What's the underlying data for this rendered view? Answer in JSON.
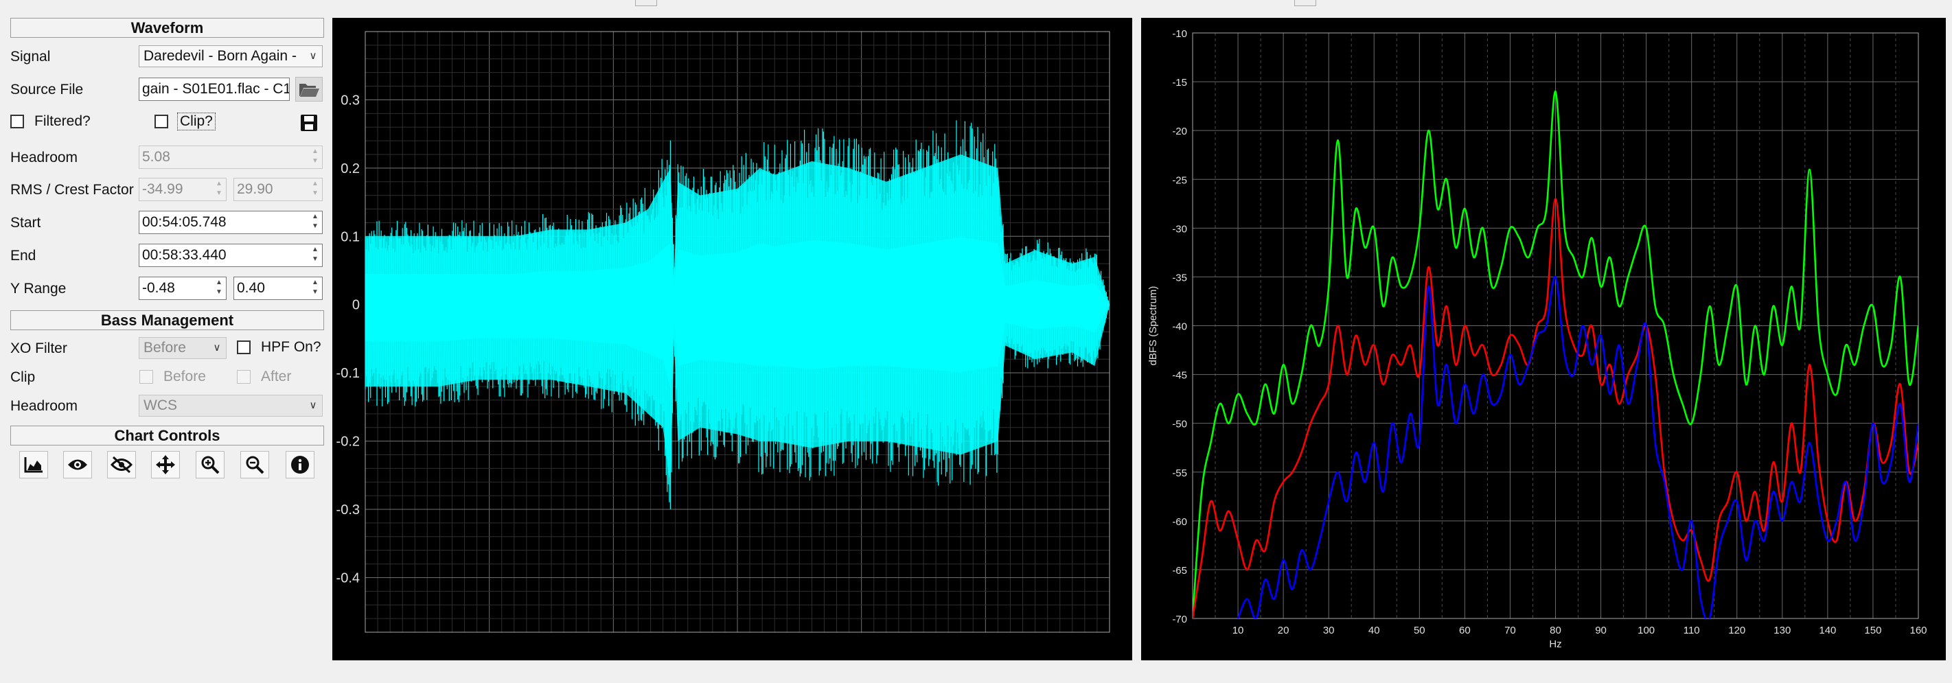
{
  "waveform": {
    "header": "Waveform",
    "signal_label": "Signal",
    "signal_value": "Daredevil - Born Again -",
    "source_label": "Source File",
    "source_value": "gain - S01E01.flac - C1",
    "filtered_label": "Filtered?",
    "clip_label": "Clip?",
    "headroom_label": "Headroom",
    "headroom_value": "5.08",
    "rms_label": "RMS / Crest Factor",
    "rms_value": "-34.99",
    "crest_value": "29.90",
    "start_label": "Start",
    "start_value": "00:54:05.748",
    "end_label": "End",
    "end_value": "00:58:33.440",
    "yrange_label": "Y Range",
    "ymin_value": "-0.48",
    "ymax_value": "0.40"
  },
  "bass": {
    "header": "Bass Management",
    "xo_label": "XO Filter",
    "xo_value": "Before",
    "hpf_label": "HPF On?",
    "clip_label": "Clip",
    "before_label": "Before",
    "after_label": "After",
    "headroom_label": "Headroom",
    "headroom_value": "WCS"
  },
  "controls": {
    "header": "Chart Controls",
    "icons": [
      "area-chart-icon",
      "eye-icon",
      "eye-slash-icon",
      "move-icon",
      "zoom-in-icon",
      "zoom-out-icon",
      "info-icon"
    ]
  },
  "colors": {
    "waveform": "#00ffff",
    "series_green": "#00ff00",
    "series_red": "#ff0000",
    "series_blue": "#0000ff",
    "chart_bg": "#000000",
    "grid": "#5a5a5a"
  },
  "chart_data": [
    {
      "type": "area",
      "title": "",
      "xlabel": "",
      "ylabel": "",
      "ylim": [
        -0.48,
        0.4
      ],
      "yticks": [
        "0.3",
        "0.2",
        "0.1",
        "0",
        "-0.1",
        "-0.2",
        "-0.3",
        "-0.4"
      ],
      "ytick_values": [
        0.3,
        0.2,
        0.1,
        0,
        -0.1,
        -0.2,
        -0.3,
        -0.4
      ],
      "series": [
        {
          "color": "#00ffff",
          "x": [
            0,
            0.05,
            0.1,
            0.15,
            0.2,
            0.25,
            0.3,
            0.35,
            0.38,
            0.4,
            0.41,
            0.415,
            0.42,
            0.45,
            0.5,
            0.53,
            0.55,
            0.6,
            0.65,
            0.7,
            0.75,
            0.8,
            0.85,
            0.86,
            0.9,
            0.95,
            0.98,
            1.0
          ],
          "upper": [
            0.1,
            0.1,
            0.1,
            0.1,
            0.1,
            0.11,
            0.11,
            0.12,
            0.14,
            0.18,
            0.2,
            0.05,
            0.18,
            0.16,
            0.17,
            0.2,
            0.19,
            0.21,
            0.2,
            0.18,
            0.2,
            0.22,
            0.2,
            0.06,
            0.08,
            0.06,
            0.07,
            0.0
          ],
          "lower": [
            -0.12,
            -0.12,
            -0.12,
            -0.11,
            -0.11,
            -0.11,
            -0.12,
            -0.13,
            -0.16,
            -0.18,
            -0.27,
            -0.05,
            -0.2,
            -0.18,
            -0.19,
            -0.2,
            -0.2,
            -0.21,
            -0.2,
            -0.2,
            -0.21,
            -0.22,
            -0.2,
            -0.06,
            -0.08,
            -0.07,
            -0.09,
            0.0
          ]
        }
      ]
    },
    {
      "type": "line",
      "title": "",
      "xlabel": "Hz",
      "ylabel": "dBFS (Spectrum)",
      "xlim": [
        0,
        160
      ],
      "ylim": [
        -70,
        -10
      ],
      "xticks": [
        10,
        20,
        30,
        40,
        50,
        60,
        70,
        80,
        90,
        100,
        110,
        120,
        130,
        140,
        150,
        160
      ],
      "yticks": [
        -10,
        -15,
        -20,
        -25,
        -30,
        -35,
        -40,
        -45,
        -50,
        -55,
        -60,
        -65,
        -70
      ],
      "series": [
        {
          "color": "#00ff00",
          "x": [
            0,
            2,
            4,
            6,
            8,
            10,
            12,
            14,
            16,
            18,
            20,
            22,
            24,
            26,
            28,
            30,
            32,
            34,
            36,
            38,
            40,
            42,
            44,
            46,
            48,
            50,
            52,
            54,
            56,
            58,
            60,
            62,
            64,
            66,
            68,
            70,
            72,
            74,
            76,
            78,
            80,
            82,
            84,
            86,
            88,
            90,
            92,
            94,
            96,
            98,
            100,
            102,
            104,
            106,
            108,
            110,
            112,
            114,
            116,
            118,
            120,
            122,
            124,
            126,
            128,
            130,
            132,
            134,
            136,
            138,
            140,
            142,
            144,
            146,
            148,
            150,
            152,
            154,
            156,
            158,
            160
          ],
          "values": [
            -70,
            -57,
            -52,
            -48,
            -50,
            -47,
            -49,
            -50,
            -46,
            -49,
            -44,
            -48,
            -45,
            -40,
            -42,
            -36,
            -21,
            -35,
            -28,
            -32,
            -30,
            -38,
            -33,
            -36,
            -35,
            -30,
            -20,
            -28,
            -25,
            -32,
            -28,
            -33,
            -30,
            -36,
            -34,
            -30,
            -31,
            -33,
            -30,
            -28,
            -16,
            -30,
            -33,
            -35,
            -31,
            -36,
            -33,
            -38,
            -35,
            -32,
            -30,
            -38,
            -40,
            -45,
            -48,
            -50,
            -45,
            -38,
            -44,
            -40,
            -36,
            -46,
            -40,
            -45,
            -38,
            -42,
            -36,
            -40,
            -24,
            -40,
            -45,
            -47,
            -42,
            -44,
            -40,
            -38,
            -44,
            -42,
            -35,
            -46,
            -40
          ]
        },
        {
          "color": "#ff0000",
          "x": [
            0,
            2,
            4,
            6,
            8,
            10,
            12,
            14,
            16,
            18,
            20,
            22,
            24,
            26,
            28,
            30,
            32,
            34,
            36,
            38,
            40,
            42,
            44,
            46,
            48,
            50,
            52,
            54,
            56,
            58,
            60,
            62,
            64,
            66,
            68,
            70,
            72,
            74,
            76,
            78,
            80,
            82,
            84,
            86,
            88,
            90,
            92,
            94,
            96,
            98,
            100,
            102,
            104,
            106,
            108,
            110,
            112,
            114,
            116,
            118,
            120,
            122,
            124,
            126,
            128,
            130,
            132,
            134,
            136,
            138,
            140,
            142,
            144,
            146,
            148,
            150,
            152,
            154,
            156,
            158,
            160
          ],
          "values": [
            -70,
            -64,
            -58,
            -61,
            -59,
            -62,
            -65,
            -62,
            -63,
            -58,
            -56,
            -55,
            -53,
            -50,
            -48,
            -46,
            -40,
            -45,
            -41,
            -44,
            -42,
            -46,
            -43,
            -44,
            -42,
            -45,
            -34,
            -42,
            -38,
            -44,
            -40,
            -43,
            -42,
            -45,
            -44,
            -41,
            -42,
            -44,
            -40,
            -38,
            -27,
            -38,
            -42,
            -43,
            -40,
            -46,
            -44,
            -48,
            -45,
            -43,
            -40,
            -45,
            -55,
            -60,
            -62,
            -61,
            -64,
            -66,
            -60,
            -58,
            -55,
            -60,
            -57,
            -61,
            -54,
            -58,
            -50,
            -55,
            -44,
            -54,
            -60,
            -62,
            -56,
            -60,
            -57,
            -50,
            -54,
            -52,
            -46,
            -55,
            -52
          ]
        },
        {
          "color": "#0000ff",
          "x": [
            10,
            12,
            14,
            16,
            18,
            20,
            22,
            24,
            26,
            28,
            30,
            32,
            34,
            36,
            38,
            40,
            42,
            44,
            46,
            48,
            50,
            52,
            54,
            56,
            58,
            60,
            62,
            64,
            66,
            68,
            70,
            72,
            74,
            76,
            78,
            80,
            82,
            84,
            86,
            88,
            90,
            92,
            94,
            96,
            98,
            100,
            102,
            104,
            106,
            108,
            110,
            112,
            114,
            116,
            118,
            120,
            122,
            124,
            126,
            128,
            130,
            132,
            134,
            136,
            138,
            140,
            142,
            144,
            146,
            148,
            150,
            152,
            154,
            156,
            158,
            160
          ],
          "values": [
            -70,
            -68,
            -70,
            -66,
            -68,
            -64,
            -67,
            -63,
            -65,
            -62,
            -58,
            -55,
            -58,
            -53,
            -56,
            -52,
            -57,
            -50,
            -54,
            -49,
            -52,
            -36,
            -48,
            -44,
            -50,
            -46,
            -49,
            -45,
            -48,
            -47,
            -43,
            -46,
            -44,
            -41,
            -40,
            -35,
            -43,
            -45,
            -40,
            -44,
            -41,
            -47,
            -42,
            -48,
            -44,
            -40,
            -52,
            -56,
            -62,
            -65,
            -60,
            -68,
            -70,
            -63,
            -60,
            -58,
            -64,
            -60,
            -62,
            -57,
            -60,
            -56,
            -58,
            -52,
            -58,
            -62,
            -60,
            -56,
            -62,
            -58,
            -50,
            -56,
            -54,
            -48,
            -56,
            -50
          ]
        }
      ]
    }
  ]
}
